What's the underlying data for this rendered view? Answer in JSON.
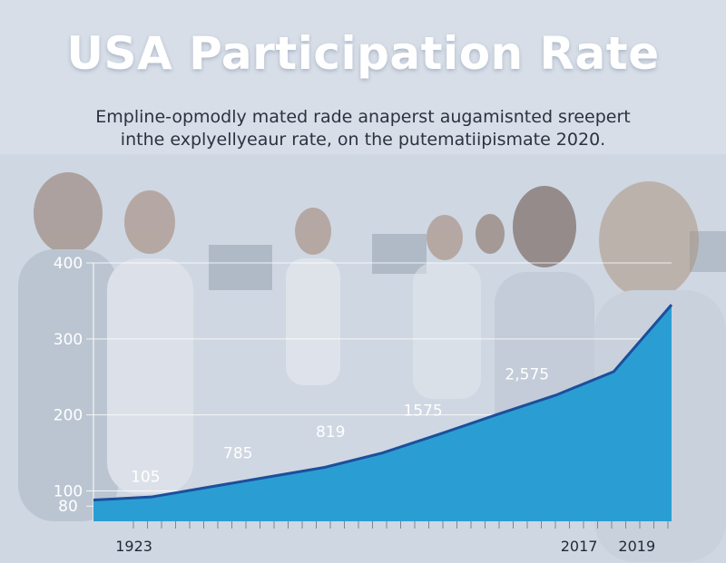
{
  "header": {
    "title": "USA Participation Rate",
    "subtitle_lines": [
      "Empline-opmodly mated rade anaperst augamisnted sreepert",
      "inthe explyellyeaur rate, on the putematiipismate 2020."
    ]
  },
  "chart_data": {
    "type": "area",
    "title": "USA Participation Rate",
    "xlabel": "",
    "ylabel": "",
    "ylim": [
      60,
      400
    ],
    "y_ticks": [
      {
        "value": 80,
        "label": "80"
      },
      {
        "value": 100,
        "label": "100"
      },
      {
        "value": 200,
        "label": "200"
      },
      {
        "value": 300,
        "label": "300"
      },
      {
        "value": 400,
        "label": "400"
      }
    ],
    "x_range": [
      1921,
      2021
    ],
    "x_tick_labels": [
      {
        "value": 1928,
        "label": "1923"
      },
      {
        "value": 2005,
        "label": "2017"
      },
      {
        "value": 2015,
        "label": "2019"
      }
    ],
    "series": [
      {
        "values": [
          {
            "x": 1921,
            "y": 88
          },
          {
            "x": 1931,
            "y": 92
          },
          {
            "x": 1941,
            "y": 105
          },
          {
            "x": 1951,
            "y": 118
          },
          {
            "x": 1961,
            "y": 131
          },
          {
            "x": 1971,
            "y": 150
          },
          {
            "x": 1981,
            "y": 175
          },
          {
            "x": 1991,
            "y": 201
          },
          {
            "x": 2001,
            "y": 226
          },
          {
            "x": 2011,
            "y": 257
          },
          {
            "x": 2021,
            "y": 345
          }
        ]
      }
    ],
    "annotations": [
      {
        "x": 1930,
        "y": 112,
        "label": "105"
      },
      {
        "x": 1946,
        "y": 143,
        "label": "785"
      },
      {
        "x": 1962,
        "y": 171,
        "label": "819"
      },
      {
        "x": 1978,
        "y": 199,
        "label": "1575"
      },
      {
        "x": 1996,
        "y": 247,
        "label": "2,575"
      }
    ],
    "grid": true,
    "colors": {
      "area_fill": "#2a9ed3",
      "line": "#1c4f9c",
      "grid": "#ffffff",
      "axis_text": "#ffffff",
      "tick_label": "#1f2a36"
    }
  }
}
